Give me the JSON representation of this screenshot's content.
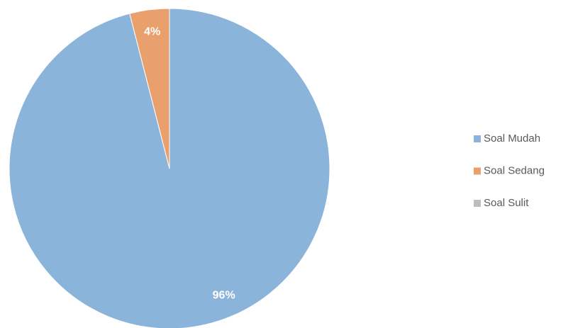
{
  "chart_data": {
    "type": "pie",
    "categories": [
      "Soal Mudah",
      "Soal Sedang",
      "Soal Sulit"
    ],
    "values": [
      96,
      4,
      0
    ],
    "value_labels": [
      "96%",
      "4%",
      null
    ],
    "colors": [
      "#8ab4da",
      "#e9a06c",
      "#bdbdbd"
    ],
    "legend": "right"
  }
}
